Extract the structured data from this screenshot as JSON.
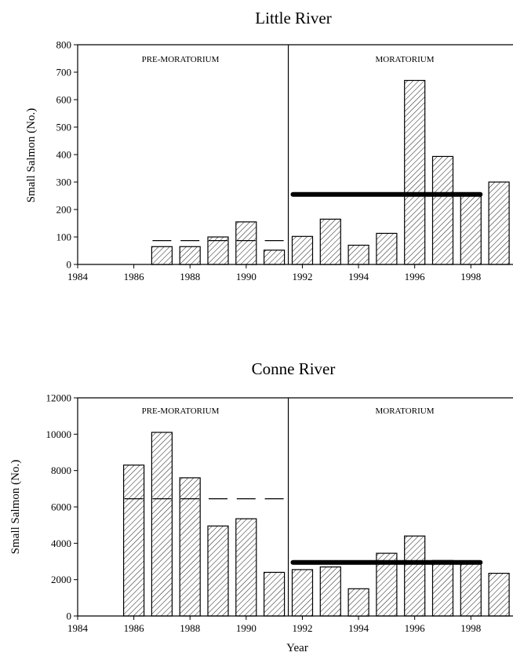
{
  "chart_data": [
    {
      "type": "bar",
      "title": "Little River",
      "ylabel": "Small Salmon (No.)",
      "xlabel": "",
      "ylim": [
        0,
        800
      ],
      "yticks": [
        0,
        100,
        200,
        300,
        400,
        500,
        600,
        700,
        800
      ],
      "xlim": [
        1984,
        1999.5
      ],
      "xticks": [
        1984,
        1986,
        1988,
        1990,
        1992,
        1994,
        1996,
        1998
      ],
      "x": [
        1987,
        1988,
        1989,
        1990,
        1991,
        1992,
        1993,
        1994,
        1995,
        1996,
        1997,
        1998,
        1999
      ],
      "values": [
        65,
        65,
        100,
        155,
        52,
        102,
        165,
        70,
        113,
        670,
        393,
        260,
        300
      ],
      "moratorium_start": 1991.5,
      "period_labels": [
        "PRE-MORATORIUM",
        "MORATORIUM"
      ],
      "pre_moratorium_mean": {
        "value": 87,
        "x_range": [
          1987,
          1991
        ]
      },
      "moratorium_mean": {
        "value": 255,
        "x_range": [
          1992,
          1998
        ]
      },
      "grid": false,
      "legend": "none"
    },
    {
      "type": "bar",
      "title": "Conne River",
      "ylabel": "Small Salmon (No.)",
      "xlabel": "Year",
      "ylim": [
        0,
        12000
      ],
      "yticks": [
        0,
        2000,
        4000,
        6000,
        8000,
        10000,
        12000
      ],
      "xlim": [
        1984,
        1999.5
      ],
      "xticks": [
        1984,
        1986,
        1988,
        1990,
        1992,
        1994,
        1996,
        1998
      ],
      "x": [
        1986,
        1987,
        1988,
        1989,
        1990,
        1991,
        1992,
        1993,
        1994,
        1995,
        1996,
        1997,
        1998,
        1999
      ],
      "values": [
        8300,
        10100,
        7600,
        4950,
        5350,
        2400,
        2550,
        2700,
        1500,
        3450,
        4400,
        3050,
        2900,
        2350
      ],
      "moratorium_start": 1991.5,
      "period_labels": [
        "PRE-MORATORIUM",
        "MORATORIUM"
      ],
      "pre_moratorium_mean": {
        "value": 6450,
        "x_range": [
          1986,
          1991
        ]
      },
      "moratorium_mean": {
        "value": 2950,
        "x_range": [
          1992,
          1998
        ]
      },
      "grid": false,
      "legend": "none"
    }
  ]
}
